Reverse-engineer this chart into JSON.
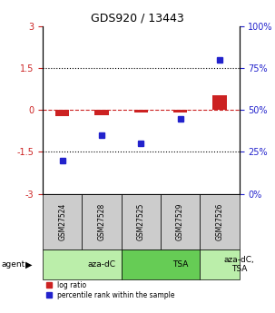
{
  "title": "GDS920 / 13443",
  "samples": [
    "GSM27524",
    "GSM27528",
    "GSM27525",
    "GSM27529",
    "GSM27526"
  ],
  "log_ratio": [
    -0.22,
    -0.18,
    -0.07,
    -0.07,
    0.55
  ],
  "percentile_rank": [
    20,
    35,
    30,
    45,
    80
  ],
  "log_ratio_color": "#cc2222",
  "percentile_color": "#2222cc",
  "ylim_left": [
    -3,
    3
  ],
  "ylim_right": [
    0,
    100
  ],
  "yticks_left": [
    -3,
    -1.5,
    0,
    1.5,
    3
  ],
  "yticks_right": [
    0,
    25,
    50,
    75,
    100
  ],
  "ytick_labels_left": [
    "-3",
    "-1.5",
    "0",
    "1.5",
    "3"
  ],
  "ytick_labels_right": [
    "0%",
    "25%",
    "50%",
    "75%",
    "100%"
  ],
  "agent_groups": [
    {
      "label": "aza-dC",
      "start": 0,
      "end": 2,
      "color": "#bbeeaa"
    },
    {
      "label": "TSA",
      "start": 2,
      "end": 4,
      "color": "#66cc55"
    },
    {
      "label": "aza-dC,\nTSA",
      "start": 4,
      "end": 5,
      "color": "#bbeeaa"
    }
  ],
  "legend_items": [
    {
      "label": "log ratio",
      "color": "#cc2222"
    },
    {
      "label": "percentile rank within the sample",
      "color": "#2222cc"
    }
  ],
  "agent_label": "agent",
  "background_color": "#ffffff",
  "sample_row_color": "#cccccc",
  "bar_width": 0.35
}
